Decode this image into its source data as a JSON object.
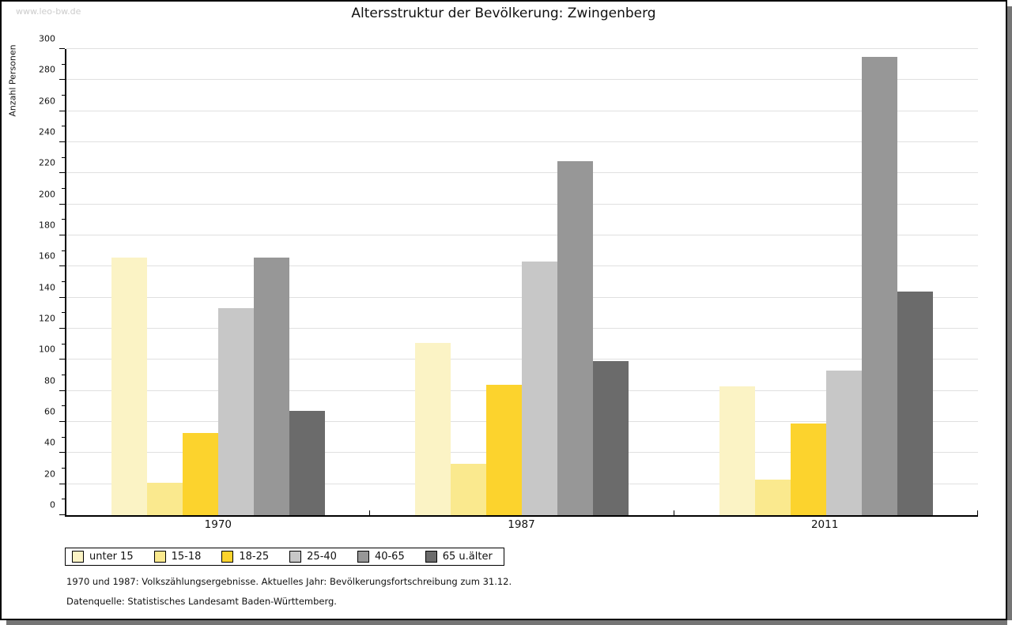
{
  "watermark": "www.leo-bw.de",
  "footnotes": [
    "1970 und 1987: Volkszählungsergebnisse. Aktuelles Jahr: Bevölkerungsfortschreibung zum 31.12.",
    "Datenquelle: Statistisches Landesamt Baden-Württemberg."
  ],
  "colors": {
    "gridline": "#e0e0e0",
    "axis": "#000000",
    "shadow": "#757575",
    "watermark_text": "#cccccc"
  },
  "chart_data": {
    "type": "bar",
    "title": "Altersstruktur der Bevölkerung: Zwingenberg",
    "xlabel": "",
    "ylabel": "Anzahl Personen",
    "categories": [
      "1970",
      "1987",
      "2011"
    ],
    "series": [
      {
        "name": "unter 15",
        "color": "#FBF3C5",
        "values": [
          166,
          111,
          83
        ]
      },
      {
        "name": "15-18",
        "color": "#FAE98E",
        "values": [
          21,
          33,
          23
        ]
      },
      {
        "name": "18-25",
        "color": "#FCD32D",
        "values": [
          53,
          84,
          59
        ]
      },
      {
        "name": "25-40",
        "color": "#C7C7C7",
        "values": [
          133,
          163,
          93
        ]
      },
      {
        "name": "40-65",
        "color": "#979797",
        "values": [
          166,
          228,
          295
        ]
      },
      {
        "name": "65 u.älter",
        "color": "#6B6B6B",
        "values": [
          67,
          99,
          144
        ]
      }
    ],
    "ylim": [
      0,
      300
    ],
    "ytick_step": 20,
    "yminor_step": 10,
    "grid": true,
    "legend_position": "bottom"
  }
}
